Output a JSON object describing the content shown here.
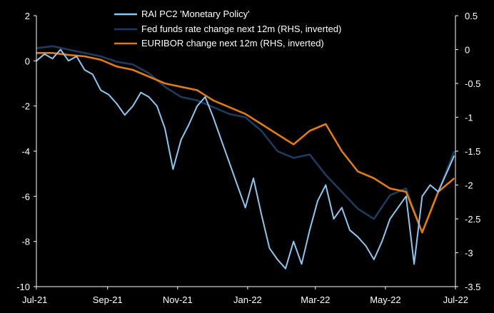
{
  "chart_data": {
    "type": "line",
    "x_ticks": [
      "Jul-21",
      "Sep-21",
      "Nov-21",
      "Jan-22",
      "Mar-22",
      "May-22",
      "Jul-22"
    ],
    "y_left": {
      "ticks": [
        "2",
        "0",
        "-2",
        "-4",
        "-6",
        "-8",
        "-10"
      ],
      "range": [
        -10,
        2
      ]
    },
    "y_right": {
      "ticks": [
        "0.5",
        "0",
        "-0.5",
        "-1",
        "-1.5",
        "-2",
        "-2.5",
        "-3",
        "-3.5"
      ],
      "range": [
        -3.5,
        0.5
      ],
      "inverted_note": "RHS, inverted"
    },
    "legend_position": "top-center",
    "grid": false,
    "series": [
      {
        "name": "RAI PC2 'Monetary Policy'",
        "axis": "left",
        "color": "#8ec6f0",
        "points": [
          [
            "2021-07-01",
            0.0
          ],
          [
            "2021-07-08",
            0.3
          ],
          [
            "2021-07-15",
            0.1
          ],
          [
            "2021-07-22",
            0.5
          ],
          [
            "2021-07-29",
            0.0
          ],
          [
            "2021-08-05",
            0.2
          ],
          [
            "2021-08-12",
            -0.4
          ],
          [
            "2021-08-19",
            -0.6
          ],
          [
            "2021-08-26",
            -1.3
          ],
          [
            "2021-09-02",
            -1.5
          ],
          [
            "2021-09-09",
            -1.9
          ],
          [
            "2021-09-16",
            -2.4
          ],
          [
            "2021-09-23",
            -2.0
          ],
          [
            "2021-09-30",
            -1.4
          ],
          [
            "2021-10-07",
            -1.6
          ],
          [
            "2021-10-14",
            -2.0
          ],
          [
            "2021-10-21",
            -3.0
          ],
          [
            "2021-10-28",
            -4.8
          ],
          [
            "2021-11-04",
            -3.5
          ],
          [
            "2021-11-11",
            -2.8
          ],
          [
            "2021-11-18",
            -2.0
          ],
          [
            "2021-11-25",
            -1.6
          ],
          [
            "2021-12-02",
            -2.5
          ],
          [
            "2021-12-09",
            -3.5
          ],
          [
            "2021-12-16",
            -4.5
          ],
          [
            "2021-12-23",
            -5.5
          ],
          [
            "2021-12-30",
            -6.5
          ],
          [
            "2022-01-06",
            -5.2
          ],
          [
            "2022-01-13",
            -6.8
          ],
          [
            "2022-01-20",
            -8.3
          ],
          [
            "2022-01-27",
            -8.8
          ],
          [
            "2022-02-03",
            -9.2
          ],
          [
            "2022-02-10",
            -8.0
          ],
          [
            "2022-02-17",
            -9.0
          ],
          [
            "2022-02-24",
            -7.5
          ],
          [
            "2022-03-03",
            -6.2
          ],
          [
            "2022-03-10",
            -5.5
          ],
          [
            "2022-03-17",
            -7.0
          ],
          [
            "2022-03-24",
            -6.5
          ],
          [
            "2022-03-31",
            -7.5
          ],
          [
            "2022-04-07",
            -7.8
          ],
          [
            "2022-04-14",
            -8.2
          ],
          [
            "2022-04-21",
            -8.8
          ],
          [
            "2022-04-28",
            -8.0
          ],
          [
            "2022-05-05",
            -7.0
          ],
          [
            "2022-05-12",
            -6.5
          ],
          [
            "2022-05-19",
            -6.0
          ],
          [
            "2022-05-26",
            -9.0
          ],
          [
            "2022-06-02",
            -6.0
          ],
          [
            "2022-06-09",
            -5.5
          ],
          [
            "2022-06-16",
            -5.8
          ],
          [
            "2022-06-23",
            -5.0
          ],
          [
            "2022-06-30",
            -4.2
          ]
        ]
      },
      {
        "name": "Fed funds rate change next 12m (RHS, inverted)",
        "axis": "right",
        "color": "#1f3a5c",
        "points": [
          [
            "2021-07-01",
            0.02
          ],
          [
            "2021-07-15",
            0.05
          ],
          [
            "2021-07-29",
            0.0
          ],
          [
            "2021-08-12",
            -0.05
          ],
          [
            "2021-08-26",
            -0.1
          ],
          [
            "2021-09-09",
            -0.18
          ],
          [
            "2021-09-23",
            -0.22
          ],
          [
            "2021-10-07",
            -0.35
          ],
          [
            "2021-10-21",
            -0.55
          ],
          [
            "2021-11-04",
            -0.7
          ],
          [
            "2021-11-18",
            -0.75
          ],
          [
            "2021-12-02",
            -0.85
          ],
          [
            "2021-12-16",
            -0.95
          ],
          [
            "2021-12-30",
            -1.0
          ],
          [
            "2022-01-13",
            -1.2
          ],
          [
            "2022-01-27",
            -1.5
          ],
          [
            "2022-02-10",
            -1.6
          ],
          [
            "2022-02-24",
            -1.55
          ],
          [
            "2022-03-10",
            -1.85
          ],
          [
            "2022-03-24",
            -2.1
          ],
          [
            "2022-04-07",
            -2.35
          ],
          [
            "2022-04-21",
            -2.5
          ],
          [
            "2022-05-05",
            -2.15
          ],
          [
            "2022-05-19",
            -2.05
          ],
          [
            "2022-06-02",
            -2.7
          ],
          [
            "2022-06-16",
            -2.1
          ],
          [
            "2022-06-30",
            -1.5
          ]
        ]
      },
      {
        "name": "EURIBOR change next 12m (RHS, inverted)",
        "axis": "right",
        "color": "#e07b1a",
        "points": [
          [
            "2021-07-01",
            -0.05
          ],
          [
            "2021-07-15",
            -0.05
          ],
          [
            "2021-07-29",
            -0.08
          ],
          [
            "2021-08-12",
            -0.1
          ],
          [
            "2021-08-26",
            -0.15
          ],
          [
            "2021-09-09",
            -0.25
          ],
          [
            "2021-09-23",
            -0.3
          ],
          [
            "2021-10-07",
            -0.4
          ],
          [
            "2021-10-21",
            -0.5
          ],
          [
            "2021-11-04",
            -0.55
          ],
          [
            "2021-11-18",
            -0.6
          ],
          [
            "2021-12-02",
            -0.75
          ],
          [
            "2021-12-16",
            -0.85
          ],
          [
            "2021-12-30",
            -0.95
          ],
          [
            "2022-01-13",
            -1.1
          ],
          [
            "2022-01-27",
            -1.25
          ],
          [
            "2022-02-10",
            -1.4
          ],
          [
            "2022-02-24",
            -1.2
          ],
          [
            "2022-03-10",
            -1.1
          ],
          [
            "2022-03-24",
            -1.5
          ],
          [
            "2022-04-07",
            -1.8
          ],
          [
            "2022-04-21",
            -1.9
          ],
          [
            "2022-05-05",
            -2.05
          ],
          [
            "2022-05-19",
            -2.1
          ],
          [
            "2022-06-02",
            -2.7
          ],
          [
            "2022-06-16",
            -2.1
          ],
          [
            "2022-06-30",
            -1.9
          ]
        ]
      }
    ]
  }
}
